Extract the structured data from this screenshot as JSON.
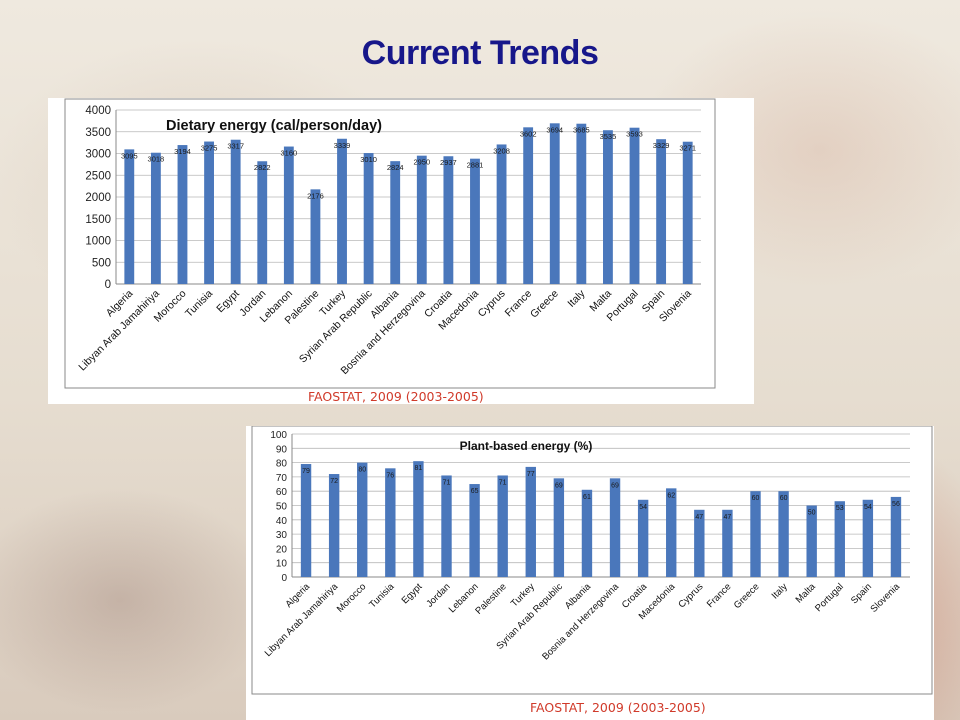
{
  "slide": {
    "title": "Current Trends"
  },
  "chart_data": [
    {
      "type": "bar",
      "title": "Dietary energy (cal/person/day)",
      "categories": [
        "Algeria",
        "Libyan Arab Jamahiriya",
        "Morocco",
        "Tunisia",
        "Egypt",
        "Jordan",
        "Lebanon",
        "Palestine",
        "Turkey",
        "Syrian Arab Republic",
        "Albania",
        "Bosnia and Herzegovina",
        "Croatia",
        "Macedonia",
        "Cyprus",
        "France",
        "Greece",
        "Italy",
        "Malta",
        "Portugal",
        "Spain",
        "Slovenia"
      ],
      "values": [
        3095,
        3018,
        3194,
        3275,
        3317,
        2822,
        3160,
        2176,
        3339,
        3010,
        2824,
        2950,
        2937,
        2881,
        3208,
        3602,
        3694,
        3685,
        3535,
        3593,
        3329,
        3271
      ],
      "ylim": [
        0,
        4000
      ],
      "yticks": [
        "0",
        "500",
        "1000",
        "1500",
        "2000",
        "2500",
        "3000",
        "3500",
        "4000"
      ],
      "xlabel": "",
      "ylabel": "",
      "grid": true,
      "bar_color": "#4a77bb",
      "source": "FAOSTAT, 2009 (2003-2005)"
    },
    {
      "type": "bar",
      "title": "Plant-based energy (%)",
      "categories": [
        "Algeria",
        "Libyan Arab Jamahiriya",
        "Morocco",
        "Tunisia",
        "Egypt",
        "Jordan",
        "Lebanon",
        "Palestine",
        "Turkey",
        "Syrian Arab Republic",
        "Albania",
        "Bosnia and Herzegovina",
        "Croatia",
        "Macedonia",
        "Cyprus",
        "France",
        "Greece",
        "Italy",
        "Malta",
        "Portugal",
        "Spain",
        "Slovenia"
      ],
      "values": [
        79,
        72,
        80,
        76,
        81,
        71,
        65,
        71,
        77,
        69,
        61,
        69,
        54,
        62,
        47,
        47,
        60,
        60,
        50,
        53,
        54,
        56
      ],
      "ylim": [
        0,
        100
      ],
      "yticks": [
        "0",
        "10",
        "20",
        "30",
        "40",
        "50",
        "60",
        "70",
        "80",
        "90",
        "100"
      ],
      "xlabel": "",
      "ylabel": "",
      "grid": true,
      "bar_color": "#4a77bb",
      "source": "FAOSTAT, 2009 (2003-2005)"
    }
  ]
}
